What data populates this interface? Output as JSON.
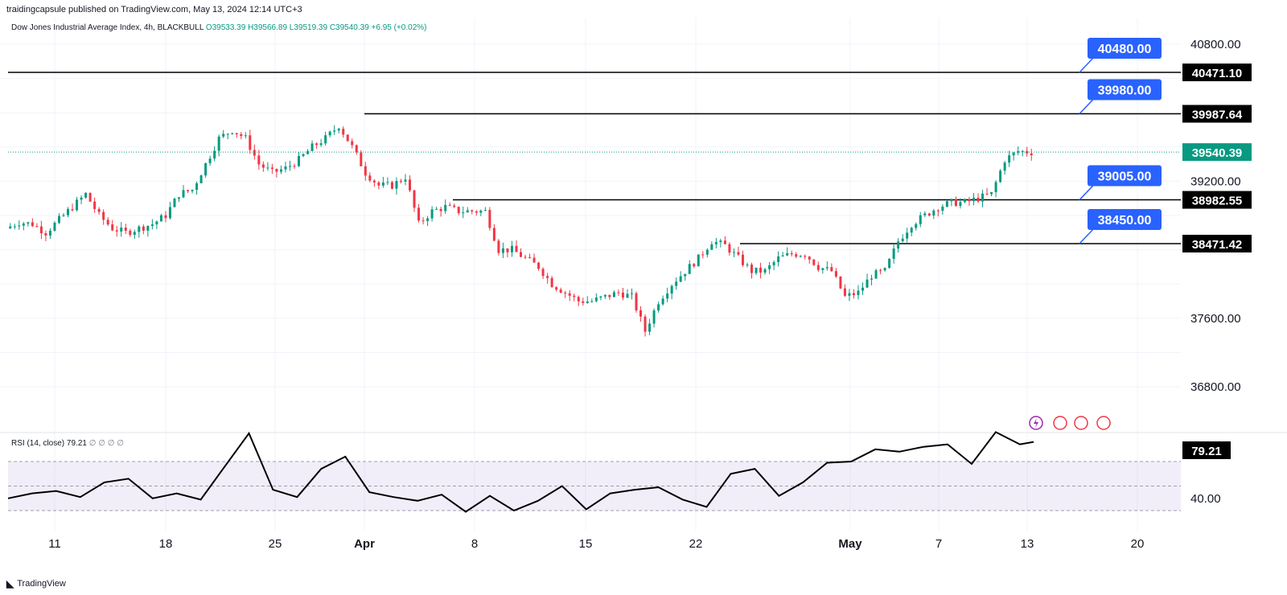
{
  "header": {
    "published": "traidingcapsule published on TradingView.com, May 13, 2024 12:14 UTC+3"
  },
  "legend": {
    "symbol": "Dow Jones Industrial Average Index, 4h, BLACKBULL",
    "ohlc": "O39533.39 H39566.89 L39519.39 C39540.39 +6.95 (+0.02%)"
  },
  "rsi": {
    "label": "RSI (14, close)",
    "value_label": "79.21",
    "params": "∅ ∅ ∅ ∅",
    "current": 79.21,
    "axis_label": "40.00"
  },
  "footer": {
    "brand": "TradingView"
  },
  "colors": {
    "up": "#089981",
    "down": "#f23645",
    "level_label": "#2962ff",
    "rsi_line": "#000000",
    "rsi_band": "#7e57c2"
  },
  "chart_data": {
    "type": "candlestick",
    "title": "Dow Jones Industrial Average Index, 4h, BLACKBULL",
    "y_ticks": [
      40800,
      39200,
      37600,
      36800
    ],
    "y_tick_labels": [
      "40800.00",
      "39200.00",
      "37600.00",
      "36800.00"
    ],
    "x_tick_labels": [
      "11",
      "18",
      "25",
      "Apr",
      "8",
      "15",
      "22",
      "May",
      "7",
      "13",
      "20"
    ],
    "current_price": 39540.39,
    "current_price_label": "39540.39",
    "levels": [
      {
        "price": 40471.1,
        "label": "40471.10",
        "target": "40480.00"
      },
      {
        "price": 39987.64,
        "label": "39987.64",
        "target": "39980.00"
      },
      {
        "price": 38982.55,
        "label": "38982.55",
        "target": "39005.00"
      },
      {
        "price": 38471.42,
        "label": "38471.42",
        "target": "38450.00"
      }
    ],
    "price_path": [
      [
        "Mar 06",
        38650
      ],
      [
        "Mar 08",
        38720
      ],
      [
        "Mar 11",
        38700
      ],
      [
        "Mar 13",
        38600
      ],
      [
        "Mar 15",
        38750
      ],
      [
        "Mar 16",
        38900
      ],
      [
        "Mar 18",
        39050
      ],
      [
        "Mar 19",
        38800
      ],
      [
        "Mar 20",
        38650
      ],
      [
        "Mar 21",
        38600
      ],
      [
        "Mar 22",
        38650
      ],
      [
        "Mar 23",
        38700
      ],
      [
        "Mar 24",
        38800
      ],
      [
        "Mar 25",
        39050
      ],
      [
        "Mar 26",
        39100
      ],
      [
        "Mar 27",
        39400
      ],
      [
        "Mar 28",
        39700
      ],
      [
        "Mar 29",
        39800
      ],
      [
        "Mar 30",
        39700
      ],
      [
        "Apr 01",
        39400
      ],
      [
        "Apr 02",
        39300
      ],
      [
        "Apr 03",
        39350
      ],
      [
        "Apr 04",
        39450
      ],
      [
        "Apr 05",
        39600
      ],
      [
        "Apr 06",
        39700
      ],
      [
        "Apr 07",
        39850
      ],
      [
        "Apr 08",
        39600
      ],
      [
        "Apr 09",
        39300
      ],
      [
        "Apr 10",
        39150
      ],
      [
        "Apr 11",
        39150
      ],
      [
        "Apr 12",
        39250
      ],
      [
        "Apr 13",
        38700
      ],
      [
        "Apr 14",
        38850
      ],
      [
        "Apr 15",
        38900
      ],
      [
        "Apr 16",
        38850
      ],
      [
        "Apr 17",
        38850
      ],
      [
        "Apr 18",
        38850
      ],
      [
        "Apr 19",
        38400
      ],
      [
        "Apr 20",
        38400
      ],
      [
        "Apr 21",
        38300
      ],
      [
        "Apr 22",
        38200
      ],
      [
        "Apr 23",
        38000
      ],
      [
        "Apr 24",
        37900
      ],
      [
        "Apr 25",
        37800
      ],
      [
        "Apr 26",
        37800
      ],
      [
        "Apr 27",
        37850
      ],
      [
        "Apr 28",
        37900
      ],
      [
        "Apr 29",
        37850
      ],
      [
        "Apr 30",
        37450
      ],
      [
        "May 01",
        37800
      ],
      [
        "May 02",
        38000
      ],
      [
        "May 03",
        38150
      ],
      [
        "May 04",
        38300
      ],
      [
        "May 05",
        38500
      ],
      [
        "May 06",
        38450
      ],
      [
        "May 07",
        38300
      ],
      [
        "May 08",
        38150
      ],
      [
        "May 09",
        38150
      ],
      [
        "May 10",
        38300
      ],
      [
        "May 11",
        38350
      ],
      [
        "May 12",
        38350
      ],
      [
        "May 13",
        38200
      ],
      [
        "May 14",
        38150
      ],
      [
        "May 15",
        37850
      ],
      [
        "May 16",
        37900
      ],
      [
        "May 17",
        38100
      ],
      [
        "May 18",
        38150
      ],
      [
        "May 19",
        38500
      ],
      [
        "May 20",
        38700
      ],
      [
        "May 21",
        38800
      ],
      [
        "May 22",
        38900
      ],
      [
        "May 23",
        38950
      ],
      [
        "May 24",
        38950
      ],
      [
        "May 25",
        39000
      ],
      [
        "May 26",
        39050
      ],
      [
        "May 27",
        39450
      ],
      [
        "May 28",
        39550
      ],
      [
        "May 29",
        39540
      ]
    ],
    "rsi_levels": [
      70,
      50,
      30
    ],
    "rsi_path": [
      [
        0,
        40
      ],
      [
        7,
        44
      ],
      [
        14,
        46
      ],
      [
        21,
        41
      ],
      [
        28,
        53
      ],
      [
        35,
        56
      ],
      [
        42,
        40
      ],
      [
        49,
        44
      ],
      [
        56,
        39
      ],
      [
        63,
        66
      ],
      [
        70,
        93
      ],
      [
        77,
        47
      ],
      [
        84,
        41
      ],
      [
        91,
        64
      ],
      [
        98,
        74
      ],
      [
        105,
        45
      ],
      [
        112,
        41
      ],
      [
        119,
        38
      ],
      [
        126,
        43
      ],
      [
        133,
        29
      ],
      [
        140,
        42
      ],
      [
        147,
        30
      ],
      [
        154,
        38
      ],
      [
        161,
        50
      ],
      [
        168,
        31
      ],
      [
        175,
        44
      ],
      [
        182,
        47
      ],
      [
        189,
        49
      ],
      [
        196,
        39
      ],
      [
        203,
        33
      ],
      [
        210,
        60
      ],
      [
        217,
        64
      ],
      [
        224,
        42
      ],
      [
        231,
        53
      ],
      [
        238,
        69
      ],
      [
        245,
        70
      ],
      [
        252,
        80
      ],
      [
        259,
        78
      ],
      [
        266,
        82
      ],
      [
        273,
        84
      ],
      [
        280,
        68
      ],
      [
        287,
        94
      ],
      [
        294,
        84
      ],
      [
        298,
        86
      ]
    ]
  }
}
